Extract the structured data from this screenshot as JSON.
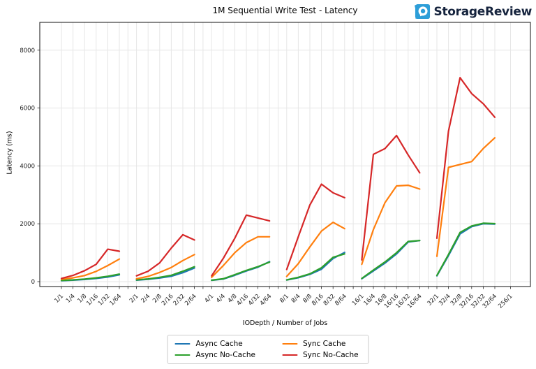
{
  "page": {
    "background": "#ffffff"
  },
  "header": {
    "logo_text": "StorageReview",
    "logo_icon": "storagereview-ring-icon",
    "logo_icon_color": "#2d9ed8",
    "logo_text_color": "#15233d"
  },
  "chart_data": {
    "type": "line",
    "title": "1M Sequential Write Test - Latency",
    "xlabel": "IODepth / Number of Jobs",
    "ylabel": "Latency (ms)",
    "ylim": [
      0,
      8950
    ],
    "yticks": [
      0,
      2000,
      4000,
      6000,
      8000
    ],
    "grid": true,
    "legend_position": "bottom-center",
    "group_size": 6,
    "categories": [
      "1/1",
      "1/4",
      "1/8",
      "1/16",
      "1/32",
      "1/64",
      "2/1",
      "2/4",
      "2/8",
      "2/16",
      "2/32",
      "2/64",
      "4/1",
      "4/4",
      "4/8",
      "4/16",
      "4/32",
      "4/64",
      "8/1",
      "8/4",
      "8/8",
      "8/16",
      "8/32",
      "8/64",
      "16/1",
      "16/4",
      "16/8",
      "16/16",
      "16/32",
      "16/64",
      "32/1",
      "32/4",
      "32/8",
      "32/16",
      "32/32",
      "32/64",
      "256/1"
    ],
    "series": [
      {
        "name": "Async Cache",
        "color": "#1f77b4",
        "values": [
          35,
          50,
          75,
          110,
          160,
          235,
          50,
          80,
          125,
          185,
          310,
          470,
          45,
          90,
          220,
          370,
          500,
          690,
          55,
          135,
          250,
          430,
          800,
          1010,
          100,
          370,
          640,
          960,
          1370,
          1420,
          200,
          900,
          1650,
          1900,
          2000,
          1990,
          null
        ]
      },
      {
        "name": "Async No-Cache",
        "color": "#2ca02c",
        "values": [
          40,
          60,
          90,
          130,
          185,
          260,
          60,
          95,
          150,
          220,
          360,
          515,
          50,
          100,
          240,
          390,
          520,
          675,
          60,
          150,
          270,
          480,
          840,
          960,
          110,
          400,
          680,
          1000,
          1390,
          1420,
          215,
          940,
          1700,
          1925,
          2020,
          2005,
          null
        ]
      },
      {
        "name": "Sync Cache",
        "color": "#ff7f0e",
        "values": [
          80,
          130,
          210,
          355,
          555,
          780,
          100,
          180,
          320,
          490,
          730,
          935,
          150,
          550,
          1000,
          1350,
          1550,
          1550,
          180,
          620,
          1200,
          1750,
          2050,
          1830,
          600,
          1800,
          2730,
          3310,
          3330,
          3200,
          875,
          3950,
          4050,
          4150,
          4600,
          4970,
          null
        ]
      },
      {
        "name": "Sync No-Cache",
        "color": "#d62728",
        "values": [
          110,
          215,
          380,
          600,
          1120,
          1050,
          200,
          360,
          650,
          1160,
          1620,
          1440,
          200,
          800,
          1500,
          2300,
          2200,
          2100,
          420,
          1550,
          2650,
          3370,
          3070,
          2900,
          750,
          4400,
          4600,
          5050,
          4380,
          3760,
          1500,
          5200,
          7050,
          6500,
          6150,
          5680,
          null
        ]
      }
    ]
  }
}
